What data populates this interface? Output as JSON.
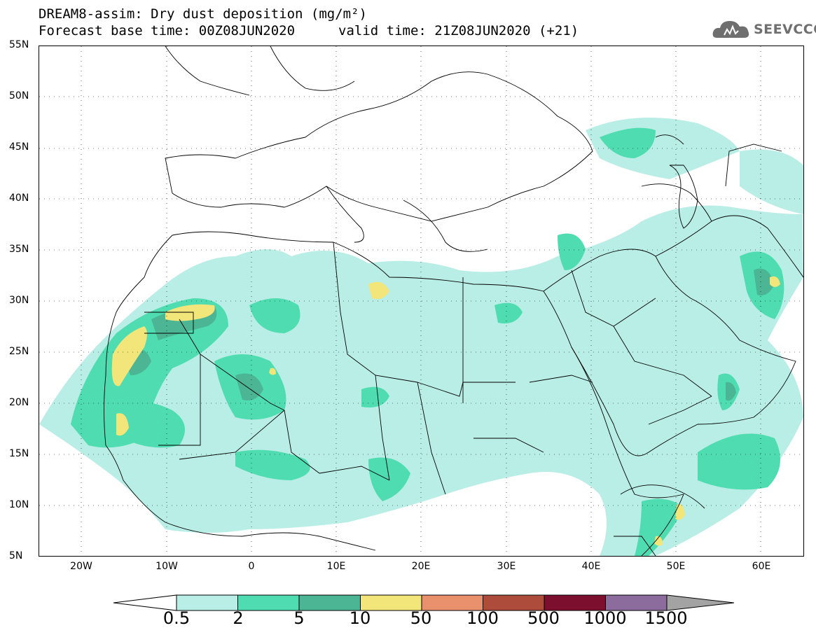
{
  "header": {
    "title_line1": "DREAM8-assim: Dry dust deposition (mg/m²)",
    "title_line2": "Forecast base time: 00Z08JUN2020",
    "valid_time": "valid time: 21Z08JUN2020 (+21)"
  },
  "logo": {
    "text": "SEEVCCC",
    "icon": "cloud-logo-icon"
  },
  "map": {
    "lat_labels": [
      "55N",
      "50N",
      "45N",
      "40N",
      "35N",
      "30N",
      "25N",
      "20N",
      "15N",
      "10N",
      "5N"
    ],
    "lon_labels": [
      "20W",
      "10W",
      "0",
      "10E",
      "20E",
      "30E",
      "40E",
      "50E",
      "60E"
    ],
    "lat_range": [
      5,
      55
    ],
    "lon_range": [
      -25,
      65
    ],
    "grid": "dotted"
  },
  "legend": {
    "labels": [
      "0.5",
      "2",
      "5",
      "10",
      "50",
      "100",
      "500",
      "1000",
      "1500"
    ],
    "colors": [
      "#ffffff",
      "#b9eee6",
      "#4fdcb0",
      "#4bb594",
      "#f2e57a",
      "#e9906c",
      "#ae4c3c",
      "#7b0f2d",
      "#8b6c9c",
      "#a3a3a3"
    ]
  }
}
